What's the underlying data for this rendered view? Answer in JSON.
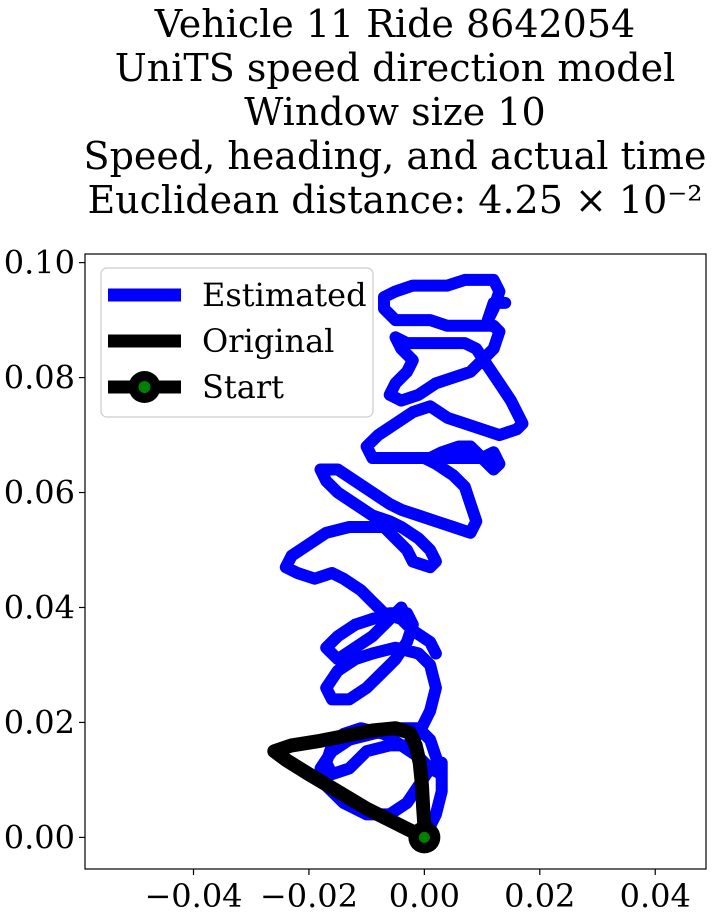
{
  "chart_data": {
    "type": "line",
    "title_lines": [
      "Vehicle 11 Ride 8642054",
      "UniTS speed direction model",
      "Window size 10",
      "Speed, heading, and actual time",
      "Euclidean distance: 4.25 × 10⁻²"
    ],
    "xlabel": "",
    "ylabel": "",
    "xlim": [
      -0.0588,
      0.0488
    ],
    "ylim": [
      -0.0055,
      0.1015
    ],
    "x_ticks": [
      -0.04,
      -0.02,
      0.0,
      0.02,
      0.04
    ],
    "x_tick_labels": [
      "−0.04",
      "−0.02",
      "0.00",
      "0.02",
      "0.04"
    ],
    "y_ticks": [
      0.0,
      0.02,
      0.04,
      0.06,
      0.08,
      0.1
    ],
    "y_tick_labels": [
      "0.00",
      "0.02",
      "0.04",
      "0.06",
      "0.08",
      "0.10"
    ],
    "grid": false,
    "legend_position": "top-left",
    "legend": [
      {
        "label": "Estimated",
        "style": "line",
        "color": "#0000ff"
      },
      {
        "label": "Original",
        "style": "line",
        "color": "#000000"
      },
      {
        "label": "Start",
        "style": "marker",
        "color": "#000000",
        "marker_fill": "#008000"
      }
    ],
    "series": [
      {
        "name": "Estimated",
        "color": "#0000ff",
        "points": [
          [
            0.0,
            0.0
          ],
          [
            0.002,
            0.004
          ],
          [
            0.003,
            0.008
          ],
          [
            0.003,
            0.011
          ],
          [
            0.002,
            0.014
          ],
          [
            0.001,
            0.017
          ],
          [
            -0.001,
            0.019
          ],
          [
            -0.005,
            0.019
          ],
          [
            -0.009,
            0.018
          ],
          [
            -0.013,
            0.017
          ],
          [
            -0.016,
            0.015
          ],
          [
            -0.018,
            0.012
          ],
          [
            -0.017,
            0.009
          ],
          [
            -0.014,
            0.006
          ],
          [
            -0.01,
            0.004
          ],
          [
            -0.006,
            0.004
          ],
          [
            -0.003,
            0.006
          ],
          [
            -0.001,
            0.009
          ],
          [
            0.001,
            0.012
          ],
          [
            0.003,
            0.013
          ],
          [
            0.003,
            0.011
          ],
          [
            0.001,
            0.012
          ],
          [
            -0.001,
            0.014
          ],
          [
            -0.004,
            0.016
          ],
          [
            -0.007,
            0.018
          ],
          [
            -0.011,
            0.019
          ],
          [
            -0.014,
            0.018
          ],
          [
            -0.016,
            0.016
          ],
          [
            -0.017,
            0.013
          ],
          [
            -0.016,
            0.011
          ],
          [
            -0.013,
            0.012
          ],
          [
            -0.01,
            0.015
          ],
          [
            -0.006,
            0.016
          ],
          [
            -0.003,
            0.016
          ],
          [
            -0.001,
            0.018
          ],
          [
            0.001,
            0.022
          ],
          [
            0.002,
            0.026
          ],
          [
            0.001,
            0.03
          ],
          [
            -0.001,
            0.032
          ],
          [
            -0.005,
            0.033
          ],
          [
            -0.009,
            0.032
          ],
          [
            -0.012,
            0.031
          ],
          [
            -0.015,
            0.029
          ],
          [
            -0.017,
            0.026
          ],
          [
            -0.016,
            0.024
          ],
          [
            -0.013,
            0.024
          ],
          [
            -0.01,
            0.026
          ],
          [
            -0.007,
            0.029
          ],
          [
            -0.005,
            0.031
          ],
          [
            -0.003,
            0.034
          ],
          [
            -0.002,
            0.037
          ],
          [
            -0.003,
            0.039
          ],
          [
            -0.006,
            0.039
          ],
          [
            -0.009,
            0.038
          ],
          [
            -0.012,
            0.037
          ],
          [
            -0.015,
            0.035
          ],
          [
            -0.017,
            0.033
          ],
          [
            -0.015,
            0.031
          ],
          [
            -0.012,
            0.033
          ],
          [
            -0.009,
            0.035
          ],
          [
            -0.007,
            0.037
          ],
          [
            -0.005,
            0.039
          ],
          [
            -0.004,
            0.04
          ],
          [
            -0.003,
            0.038
          ],
          [
            -0.002,
            0.036
          ],
          [
            0.001,
            0.034
          ],
          [
            0.002,
            0.032
          ],
          [
            0.001,
            0.034
          ],
          [
            -0.002,
            0.036
          ],
          [
            -0.004,
            0.038
          ],
          [
            -0.007,
            0.039
          ],
          [
            -0.009,
            0.041
          ],
          [
            -0.011,
            0.043
          ],
          [
            -0.014,
            0.045
          ],
          [
            -0.016,
            0.046
          ],
          [
            -0.019,
            0.045
          ],
          [
            -0.022,
            0.046
          ],
          [
            -0.024,
            0.047
          ],
          [
            -0.023,
            0.049
          ],
          [
            -0.02,
            0.051
          ],
          [
            -0.017,
            0.053
          ],
          [
            -0.013,
            0.054
          ],
          [
            -0.01,
            0.054
          ],
          [
            -0.007,
            0.054
          ],
          [
            -0.005,
            0.052
          ],
          [
            -0.003,
            0.05
          ],
          [
            -0.002,
            0.048
          ],
          [
            0.001,
            0.047
          ],
          [
            0.002,
            0.048
          ],
          [
            0.001,
            0.05
          ],
          [
            -0.001,
            0.052
          ],
          [
            -0.004,
            0.054
          ],
          [
            -0.006,
            0.055
          ],
          [
            -0.009,
            0.056
          ],
          [
            -0.012,
            0.058
          ],
          [
            -0.015,
            0.06
          ],
          [
            -0.017,
            0.062
          ],
          [
            -0.018,
            0.064
          ],
          [
            -0.015,
            0.064
          ],
          [
            -0.012,
            0.062
          ],
          [
            -0.009,
            0.06
          ],
          [
            -0.006,
            0.058
          ],
          [
            -0.004,
            0.057
          ],
          [
            -0.001,
            0.056
          ],
          [
            0.002,
            0.055
          ],
          [
            0.005,
            0.054
          ],
          [
            0.008,
            0.053
          ],
          [
            0.009,
            0.055
          ],
          [
            0.008,
            0.058
          ],
          [
            0.007,
            0.061
          ],
          [
            0.005,
            0.063
          ],
          [
            0.002,
            0.065
          ],
          [
            0.0,
            0.066
          ],
          [
            0.003,
            0.066
          ],
          [
            0.007,
            0.066
          ],
          [
            0.01,
            0.066
          ],
          [
            0.012,
            0.067
          ],
          [
            0.013,
            0.065
          ],
          [
            0.012,
            0.064
          ],
          [
            0.01,
            0.066
          ],
          [
            0.008,
            0.068
          ],
          [
            0.006,
            0.068
          ],
          [
            0.003,
            0.067
          ],
          [
            0.001,
            0.066
          ],
          [
            -0.003,
            0.066
          ],
          [
            -0.006,
            0.066
          ],
          [
            -0.009,
            0.066
          ],
          [
            -0.01,
            0.068
          ],
          [
            -0.008,
            0.07
          ],
          [
            -0.005,
            0.072
          ],
          [
            -0.002,
            0.074
          ],
          [
            0.001,
            0.075
          ],
          [
            0.004,
            0.073
          ],
          [
            0.007,
            0.072
          ],
          [
            0.01,
            0.071
          ],
          [
            0.013,
            0.07
          ],
          [
            0.016,
            0.071
          ],
          [
            0.017,
            0.072
          ],
          [
            0.016,
            0.074
          ],
          [
            0.015,
            0.076
          ],
          [
            0.013,
            0.079
          ],
          [
            0.011,
            0.082
          ],
          [
            0.009,
            0.085
          ],
          [
            0.007,
            0.086
          ],
          [
            0.004,
            0.086
          ],
          [
            0.0,
            0.086
          ],
          [
            -0.003,
            0.086
          ],
          [
            -0.005,
            0.087
          ],
          [
            -0.004,
            0.085
          ],
          [
            -0.002,
            0.083
          ],
          [
            -0.003,
            0.081
          ],
          [
            -0.005,
            0.079
          ],
          [
            -0.006,
            0.077
          ],
          [
            -0.004,
            0.076
          ],
          [
            -0.001,
            0.077
          ],
          [
            0.002,
            0.079
          ],
          [
            0.005,
            0.08
          ],
          [
            0.008,
            0.081
          ],
          [
            0.01,
            0.083
          ],
          [
            0.012,
            0.085
          ],
          [
            0.013,
            0.088
          ],
          [
            0.012,
            0.089
          ],
          [
            0.01,
            0.089
          ],
          [
            0.007,
            0.089
          ],
          [
            0.004,
            0.089
          ],
          [
            0.001,
            0.09
          ],
          [
            -0.002,
            0.09
          ],
          [
            -0.005,
            0.09
          ],
          [
            -0.007,
            0.092
          ],
          [
            -0.007,
            0.094
          ],
          [
            -0.005,
            0.095
          ],
          [
            -0.002,
            0.096
          ],
          [
            0.001,
            0.096
          ],
          [
            0.004,
            0.096
          ],
          [
            0.007,
            0.097
          ],
          [
            0.01,
            0.097
          ],
          [
            0.012,
            0.097
          ],
          [
            0.013,
            0.095
          ],
          [
            0.012,
            0.092
          ],
          [
            0.011,
            0.09
          ],
          [
            0.012,
            0.093
          ],
          [
            0.014,
            0.093
          ]
        ]
      },
      {
        "name": "Original",
        "color": "#000000",
        "points": [
          [
            0.0,
            0.0
          ],
          [
            -0.003,
            0.0015
          ],
          [
            -0.006,
            0.003
          ],
          [
            -0.01,
            0.005
          ],
          [
            -0.015,
            0.008
          ],
          [
            -0.02,
            0.011
          ],
          [
            -0.024,
            0.0135
          ],
          [
            -0.026,
            0.015
          ],
          [
            -0.023,
            0.016
          ],
          [
            -0.018,
            0.0168
          ],
          [
            -0.013,
            0.0178
          ],
          [
            -0.009,
            0.0186
          ],
          [
            -0.005,
            0.019
          ],
          [
            -0.0025,
            0.0182
          ],
          [
            -0.0015,
            0.016
          ],
          [
            -0.0008,
            0.013
          ],
          [
            -0.0004,
            0.009
          ],
          [
            -0.0002,
            0.005
          ],
          [
            0.0,
            0.002
          ],
          [
            0.0,
            0.0
          ]
        ]
      }
    ],
    "start_point": [
      0.0,
      0.0
    ]
  }
}
